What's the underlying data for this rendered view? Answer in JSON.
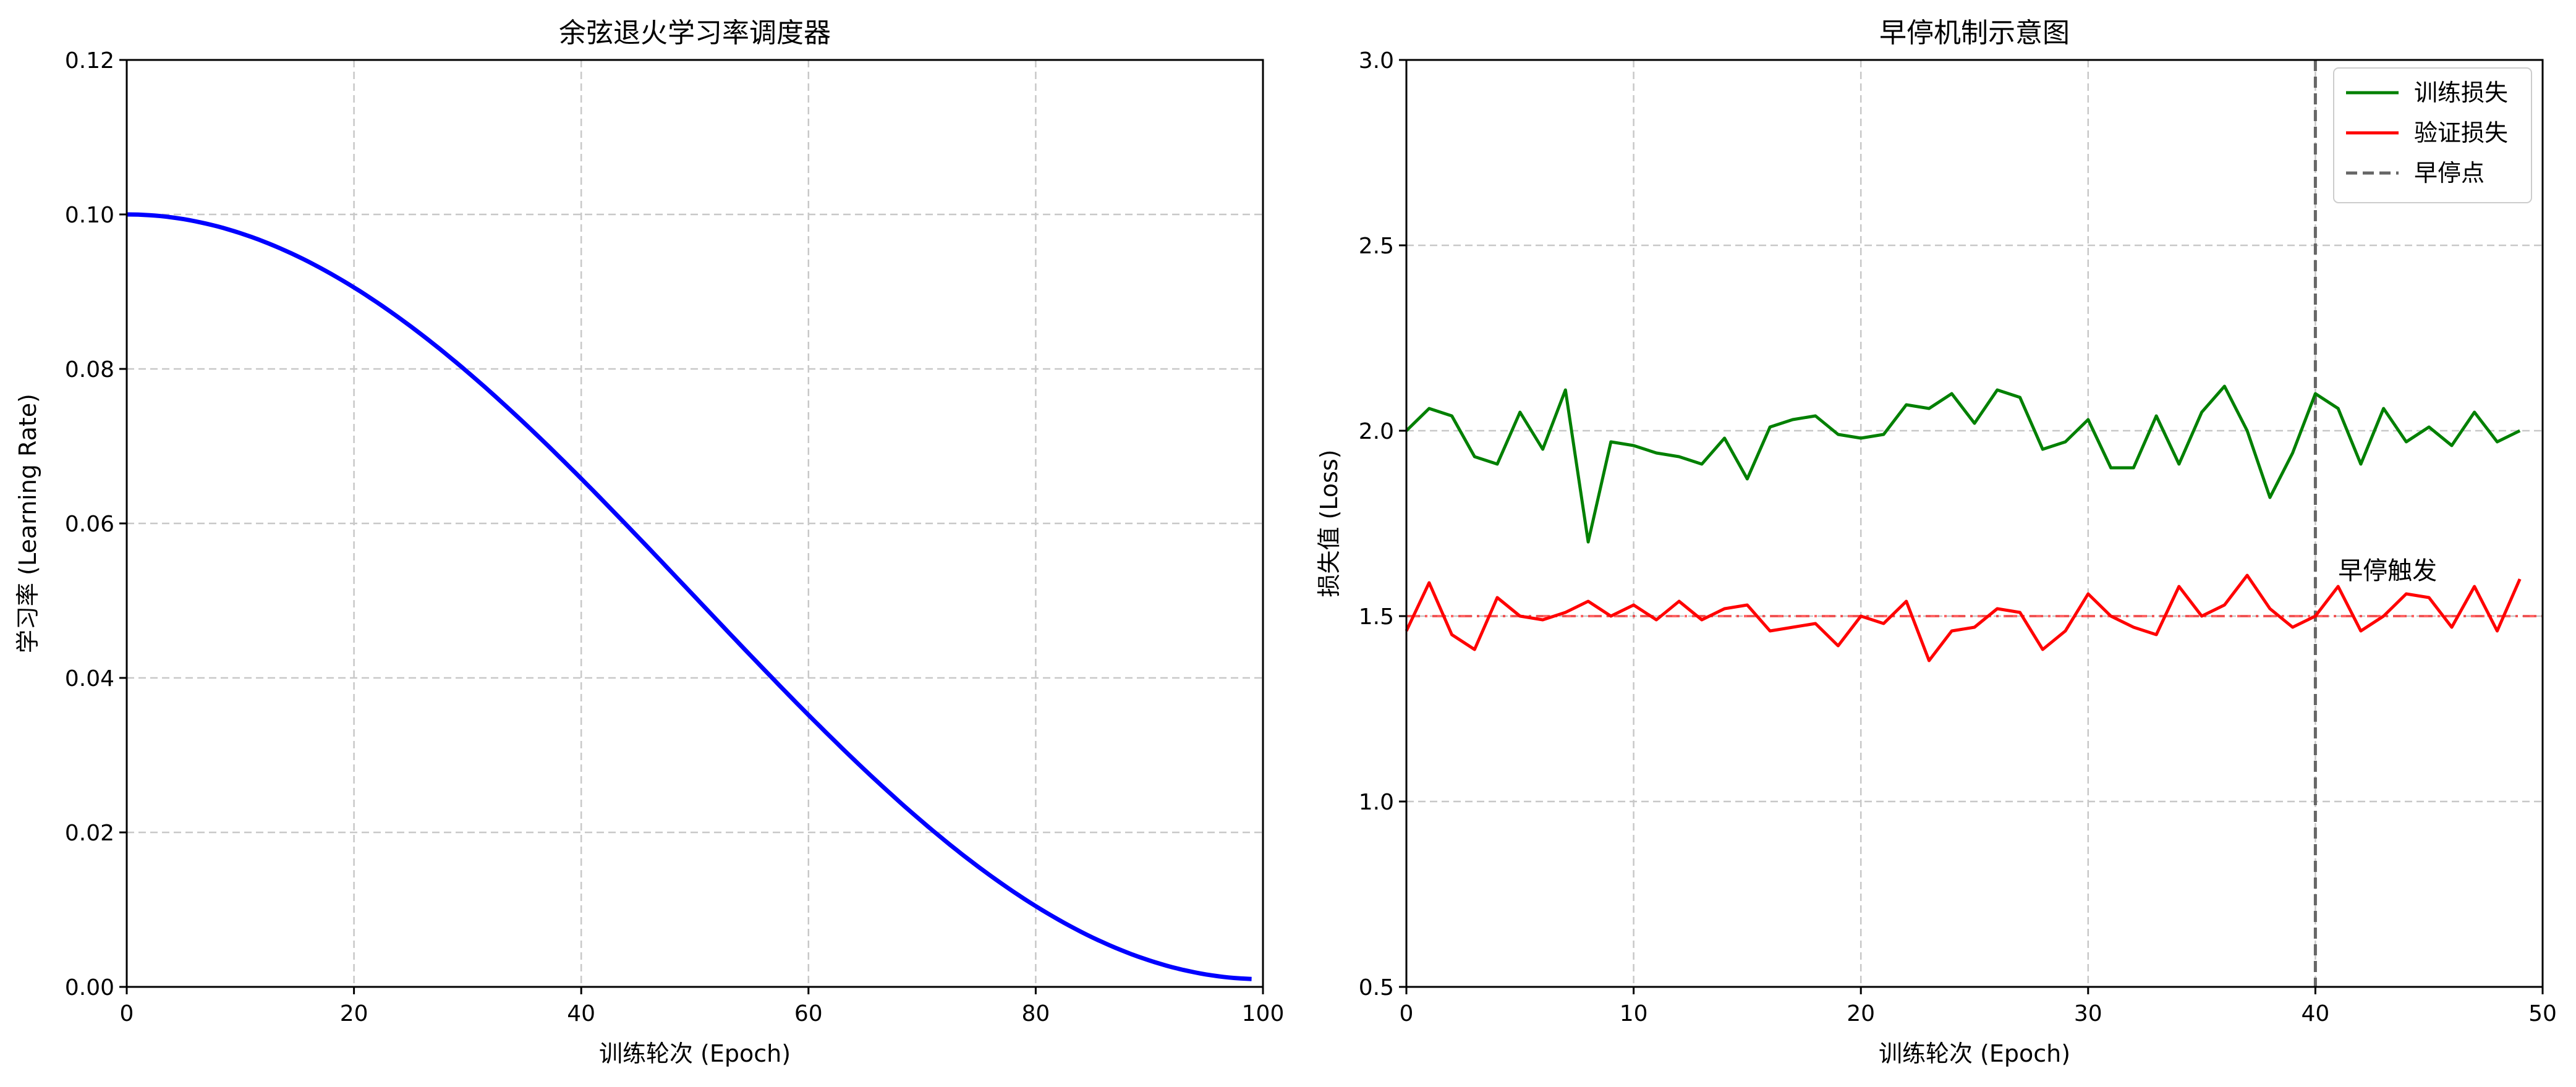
{
  "chart_data": [
    {
      "type": "line",
      "title": "余弦退火学习率调度器",
      "xlabel": "训练轮次 (Epoch)",
      "ylabel": "学习率 (Learning Rate)",
      "xlim": [
        0,
        100
      ],
      "ylim": [
        0,
        0.12
      ],
      "xticks": [
        0,
        20,
        40,
        60,
        80,
        100
      ],
      "xtick_labels": [
        "0",
        "20",
        "40",
        "60",
        "80",
        "100"
      ],
      "yticks": [
        0,
        0.02,
        0.04,
        0.06,
        0.08,
        0.1,
        0.12
      ],
      "ytick_labels": [
        "0.00",
        "0.02",
        "0.04",
        "0.06",
        "0.08",
        "0.10",
        "0.12"
      ],
      "grid": true,
      "series": [
        {
          "color": "#0000ff",
          "x": [
            0,
            5,
            10,
            15,
            20,
            25,
            30,
            35,
            40,
            45,
            50,
            55,
            60,
            65,
            70,
            75,
            80,
            85,
            90,
            95,
            99
          ],
          "values": [
            0.1,
            0.0994,
            0.0976,
            0.0946,
            0.0905,
            0.0855,
            0.0796,
            0.0729,
            0.0657,
            0.058,
            0.0501,
            0.0421,
            0.0344,
            0.0272,
            0.0206,
            0.0148,
            0.0097,
            0.0057,
            0.0026,
            0.0008,
            0.001
          ]
        }
      ]
    },
    {
      "type": "line",
      "title": "早停机制示意图",
      "xlabel": "训练轮次 (Epoch)",
      "ylabel": "损失值 (Loss)",
      "xlim": [
        0,
        50
      ],
      "ylim": [
        0.5,
        3.0
      ],
      "xticks": [
        0,
        10,
        20,
        30,
        40,
        50
      ],
      "xtick_labels": [
        "0",
        "10",
        "20",
        "30",
        "40",
        "50"
      ],
      "yticks": [
        0.5,
        1.0,
        1.5,
        2.0,
        2.5,
        3.0
      ],
      "ytick_labels": [
        "0.5",
        "1.0",
        "1.5",
        "2.0",
        "2.5",
        "3.0"
      ],
      "grid": true,
      "legend_position": "top-right",
      "series": [
        {
          "name": "训练损失",
          "color": "#008000",
          "x": [
            0,
            1,
            2,
            3,
            4,
            5,
            6,
            7,
            8,
            9,
            10,
            11,
            12,
            13,
            14,
            15,
            16,
            17,
            18,
            19,
            20,
            21,
            22,
            23,
            24,
            25,
            26,
            27,
            28,
            29,
            30,
            31,
            32,
            33,
            34,
            35,
            36,
            37,
            38,
            39,
            40,
            41,
            42,
            43,
            44,
            45,
            46,
            47,
            48,
            49
          ],
          "values": [
            2.0,
            2.06,
            2.04,
            1.93,
            1.91,
            2.05,
            1.95,
            2.11,
            1.7,
            1.97,
            1.96,
            1.94,
            1.93,
            1.91,
            1.98,
            1.87,
            2.01,
            2.03,
            2.04,
            1.99,
            1.98,
            1.99,
            2.07,
            2.06,
            2.1,
            2.02,
            2.11,
            2.09,
            1.95,
            1.97,
            2.03,
            1.9,
            1.9,
            2.04,
            1.91,
            2.05,
            2.12,
            2.0,
            1.82,
            1.94,
            2.1,
            2.06,
            1.91,
            2.06,
            1.97,
            2.01,
            1.96,
            2.05,
            1.97,
            2.0
          ]
        },
        {
          "name": "验证损失",
          "color": "#ff0000",
          "x": [
            0,
            1,
            2,
            3,
            4,
            5,
            6,
            7,
            8,
            9,
            10,
            11,
            12,
            13,
            14,
            15,
            16,
            17,
            18,
            19,
            20,
            21,
            22,
            23,
            24,
            25,
            26,
            27,
            28,
            29,
            30,
            31,
            32,
            33,
            34,
            35,
            36,
            37,
            38,
            39,
            40,
            41,
            42,
            43,
            44,
            45,
            46,
            47,
            48,
            49
          ],
          "values": [
            1.46,
            1.59,
            1.45,
            1.41,
            1.55,
            1.5,
            1.49,
            1.51,
            1.54,
            1.5,
            1.53,
            1.49,
            1.54,
            1.49,
            1.52,
            1.53,
            1.46,
            1.47,
            1.48,
            1.42,
            1.5,
            1.48,
            1.54,
            1.38,
            1.46,
            1.47,
            1.52,
            1.51,
            1.41,
            1.46,
            1.56,
            1.5,
            1.47,
            1.45,
            1.58,
            1.5,
            1.53,
            1.61,
            1.52,
            1.47,
            1.5,
            1.58,
            1.46,
            1.5,
            1.56,
            1.55,
            1.47,
            1.58,
            1.46,
            1.6
          ]
        }
      ],
      "reference_lines": [
        {
          "name": "早停点",
          "orientation": "vertical",
          "value": 40,
          "color": "#666666",
          "style": "dashed"
        },
        {
          "orientation": "horizontal",
          "value": 1.5,
          "color": "#ff0000",
          "style": "dash-dot"
        }
      ],
      "annotations": [
        {
          "text": "早停触发",
          "x": 41,
          "y": 1.6
        }
      ]
    }
  ]
}
